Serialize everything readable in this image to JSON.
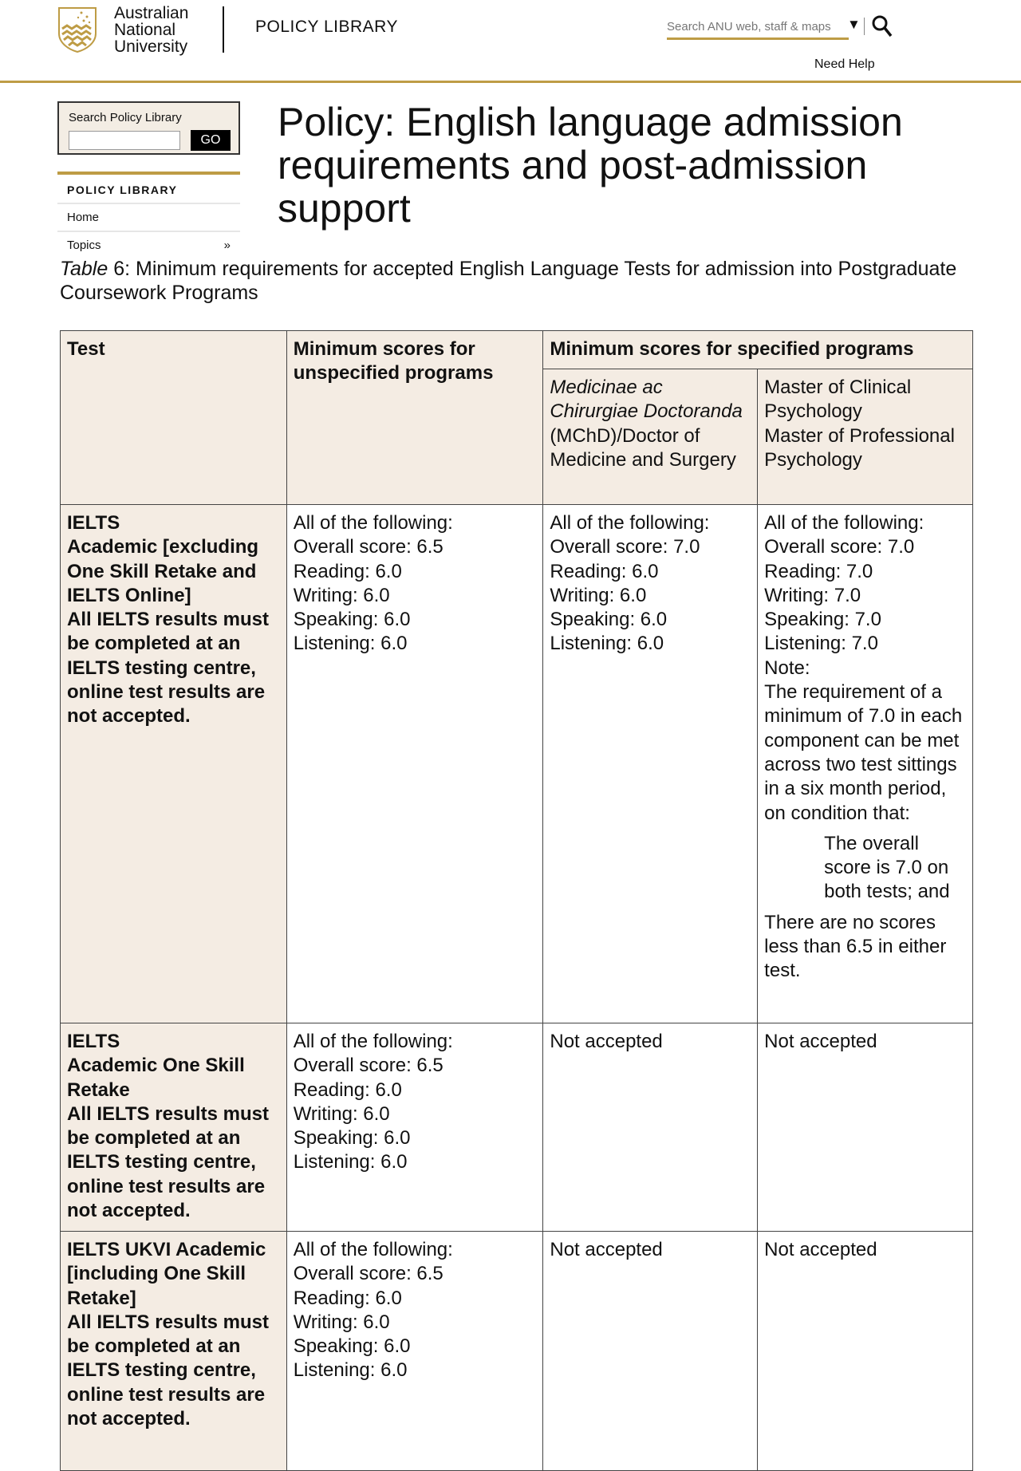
{
  "header": {
    "university": [
      "Australian",
      "National",
      "University"
    ],
    "site_title": "POLICY LIBRARY",
    "search_placeholder": "Search ANU web, staff & maps",
    "dropdown_icon": "caret-down",
    "search_icon": "magnifier",
    "need_help": "Need Help"
  },
  "colors": {
    "gold": "#be9c45",
    "table_header_bg": "#f4ece3"
  },
  "sidebar": {
    "search_label": "Search Policy Library",
    "search_value": "",
    "go": "GO",
    "nav_heading": "POLICY LIBRARY",
    "items": [
      {
        "label": "Home",
        "arrow": ""
      },
      {
        "label": "Topics",
        "arrow": "»"
      }
    ]
  },
  "page": {
    "title": "Policy: English language admission requirements and post-admission support",
    "caption_italic": "Table",
    "caption_rest": " 6: Minimum requirements for accepted English Language Tests for admission into Postgraduate Coursework Programs"
  },
  "table": {
    "headers": {
      "test": "Test",
      "unspecified": "Minimum scores for unspecified programs",
      "specified": "Minimum scores for specified programs",
      "mchd_italic": "Medicinae ac Chirurgiae Doctoranda",
      "mchd_rest": " (MChD)/Doctor of Medicine and Surgery",
      "psych": [
        "Master of Clinical Psychology",
        "Master of Professional Psychology"
      ]
    },
    "rows": [
      {
        "test": [
          "IELTS",
          "Academic [excluding One Skill Retake and IELTS Online]",
          "All IELTS results must be completed at an IELTS testing centre, online test results are not accepted."
        ],
        "unspecified": [
          "All of the following:",
          "Overall score: 6.5",
          "Reading: 6.0",
          "Writing: 6.0",
          "Speaking: 6.0",
          "Listening: 6.0"
        ],
        "mchd": [
          "All of the following:",
          "Overall score: 7.0",
          "Reading: 6.0",
          "Writing: 6.0",
          "Speaking: 6.0",
          "Listening: 6.0"
        ],
        "psych": [
          "All of the following:",
          "Overall score: 7.0",
          "Reading: 7.0",
          "Writing: 7.0",
          "Speaking: 7.0",
          "Listening: 7.0",
          "Note:",
          "The requirement of a minimum of 7.0 in each component can be met across two test sittings in a six month period, on condition that:"
        ],
        "psych_indent": "The overall score is 7.0 on both tests; and",
        "psych_end": "There are no scores less than 6.5 in either test."
      },
      {
        "test": [
          "IELTS",
          "Academic One Skill Retake",
          "All IELTS results must be completed at an IELTS testing centre, online test results are not accepted."
        ],
        "unspecified": [
          "All of the following:",
          "Overall score: 6.5",
          "Reading: 6.0",
          "Writing: 6.0",
          "Speaking: 6.0",
          "Listening: 6.0"
        ],
        "mchd": [
          "Not accepted"
        ],
        "psych": [
          "Not accepted"
        ]
      },
      {
        "test": [
          "IELTS UKVI Academic [including One Skill Retake]",
          "All IELTS results must be completed at an IELTS testing centre, online test results are not accepted."
        ],
        "unspecified": [
          "All of the following:",
          "Overall score: 6.5",
          "Reading: 6.0",
          "Writing: 6.0",
          "Speaking: 6.0",
          "Listening: 6.0"
        ],
        "mchd": [
          "Not accepted"
        ],
        "psych": [
          "Not accepted"
        ]
      }
    ]
  }
}
